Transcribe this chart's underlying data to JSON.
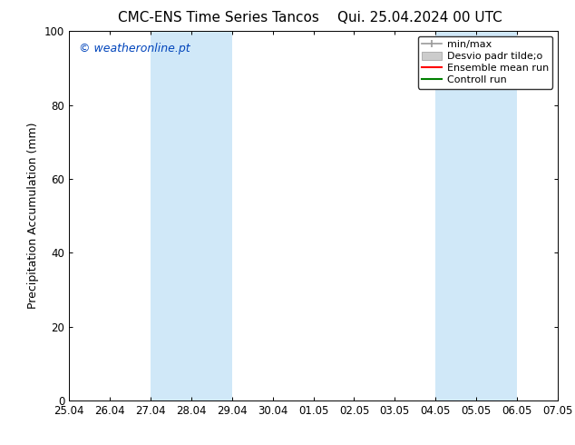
{
  "title_left": "CMC-ENS Time Series Tancos",
  "title_right": "Qui. 25.04.2024 00 UTC",
  "ylabel": "Precipitation Accumulation (mm)",
  "watermark": "© weatheronline.pt",
  "watermark_color": "#0044bb",
  "ylim": [
    0,
    100
  ],
  "xtick_labels": [
    "25.04",
    "26.04",
    "27.04",
    "28.04",
    "29.04",
    "30.04",
    "01.05",
    "02.05",
    "03.05",
    "04.05",
    "05.05",
    "06.05",
    "07.05"
  ],
  "xtick_positions": [
    0,
    1,
    2,
    3,
    4,
    5,
    6,
    7,
    8,
    9,
    10,
    11,
    12
  ],
  "ytick_labels": [
    "0",
    "20",
    "40",
    "60",
    "80",
    "100"
  ],
  "ytick_positions": [
    0,
    20,
    40,
    60,
    80,
    100
  ],
  "shaded_bands": [
    {
      "x_start": 2,
      "x_end": 4,
      "color": "#d0e8f8"
    },
    {
      "x_start": 9,
      "x_end": 11,
      "color": "#d0e8f8"
    }
  ],
  "legend_entries": [
    {
      "label": "min/max",
      "color": "#999999",
      "type": "minmax"
    },
    {
      "label": "Desvio padr tilde;o",
      "color": "#cccccc",
      "type": "band"
    },
    {
      "label": "Ensemble mean run",
      "color": "#ff0000",
      "type": "line"
    },
    {
      "label": "Controll run",
      "color": "#008000",
      "type": "line"
    }
  ],
  "bg_color": "#ffffff",
  "plot_bg_color": "#ffffff",
  "title_fontsize": 11,
  "label_fontsize": 9,
  "tick_fontsize": 8.5,
  "legend_fontsize": 8,
  "watermark_fontsize": 9
}
